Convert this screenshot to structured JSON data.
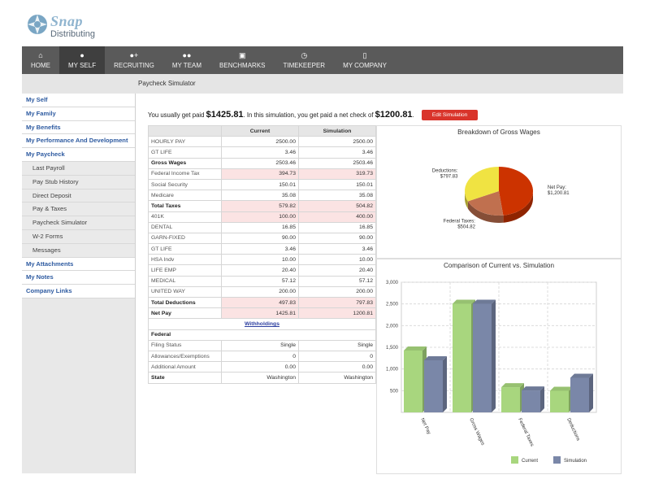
{
  "logo": {
    "brand": "Snap",
    "sub": "Distributing"
  },
  "nav": [
    {
      "icon": "home-icon",
      "glyph": "⌂",
      "label": "HOME"
    },
    {
      "icon": "user-icon",
      "glyph": "●",
      "label": "MY SELF",
      "active": true
    },
    {
      "icon": "add-user-icon",
      "glyph": "●+",
      "label": "RECRUITING"
    },
    {
      "icon": "team-icon",
      "glyph": "●●",
      "label": "MY TEAM"
    },
    {
      "icon": "benchmarks-icon",
      "glyph": "▣",
      "label": "BENCHMARKS"
    },
    {
      "icon": "clock-icon",
      "glyph": "◷",
      "label": "TIMEKEEPER"
    },
    {
      "icon": "building-icon",
      "glyph": "▯",
      "label": "MY COMPANY"
    }
  ],
  "page_title": "Paycheck Simulator",
  "sidebar": [
    {
      "label": "My Self",
      "type": "main"
    },
    {
      "label": "My Family",
      "type": "main"
    },
    {
      "label": "My Benefits",
      "type": "main"
    },
    {
      "label": "My Performance And Development",
      "type": "main"
    },
    {
      "label": "My Paycheck",
      "type": "main"
    },
    {
      "label": "Last Payroll",
      "type": "sub"
    },
    {
      "label": "Pay Stub History",
      "type": "sub"
    },
    {
      "label": "Direct Deposit",
      "type": "sub"
    },
    {
      "label": "Pay & Taxes",
      "type": "sub"
    },
    {
      "label": "Paycheck Simulator",
      "type": "sub"
    },
    {
      "label": "W-2 Forms",
      "type": "sub"
    },
    {
      "label": "Messages",
      "type": "sub"
    },
    {
      "label": "My Attachments",
      "type": "main"
    },
    {
      "label": "My Notes",
      "type": "main"
    },
    {
      "label": "Company Links",
      "type": "main"
    }
  ],
  "paymsg": {
    "pre": "You usually get paid ",
    "current": "$1425.81",
    "mid": ". In this simulation, you get paid a net check of ",
    "sim": "$1200.81",
    "post": ".",
    "edit_label": "Edit Simulation"
  },
  "table": {
    "headers": [
      "",
      "Current",
      "Simulation"
    ],
    "rows": [
      {
        "label": "HOURLY PAY",
        "current": "2500.00",
        "sim": "2500.00"
      },
      {
        "label": "GT LIFE",
        "current": "3.46",
        "sim": "3.46"
      },
      {
        "label": "Gross Wages",
        "current": "2503.46",
        "sim": "2503.46",
        "bold": true
      },
      {
        "label": "Federal Income Tax",
        "current": "394.73",
        "sim": "319.73",
        "pink": true
      },
      {
        "label": "Social Security",
        "current": "150.01",
        "sim": "150.01"
      },
      {
        "label": "Medicare",
        "current": "35.08",
        "sim": "35.08"
      },
      {
        "label": "Total Taxes",
        "current": "579.82",
        "sim": "504.82",
        "bold": true,
        "pink": true
      },
      {
        "label": "401K",
        "current": "100.00",
        "sim": "400.00",
        "pink": true
      },
      {
        "label": "DENTAL",
        "current": "16.85",
        "sim": "16.85"
      },
      {
        "label": "GARN-FIXED",
        "current": "90.00",
        "sim": "90.00"
      },
      {
        "label": "GT LIFE",
        "current": "3.46",
        "sim": "3.46"
      },
      {
        "label": "HSA Indv",
        "current": "10.00",
        "sim": "10.00"
      },
      {
        "label": "LIFE EMP",
        "current": "20.40",
        "sim": "20.40"
      },
      {
        "label": "MEDICAL",
        "current": "57.12",
        "sim": "57.12"
      },
      {
        "label": "UNITED WAY",
        "current": "200.00",
        "sim": "200.00"
      },
      {
        "label": "Total Deductions",
        "current": "497.83",
        "sim": "797.83",
        "bold": true,
        "pink": true
      },
      {
        "label": "Net Pay",
        "current": "1425.81",
        "sim": "1200.81",
        "bold": true,
        "pink": true
      }
    ],
    "withholdings_link": "Withholdings",
    "federal_label": "Federal",
    "fed_rows": [
      {
        "label": "Filing Status",
        "current": "Single",
        "sim": "Single"
      },
      {
        "label": "Allowances/Exemptions",
        "current": "0",
        "sim": "0"
      },
      {
        "label": "Additional Amount",
        "current": "0.00",
        "sim": "0.00"
      },
      {
        "label": "State",
        "current": "Washington",
        "sim": "Washington",
        "bold": true
      }
    ]
  },
  "chart_data": [
    {
      "type": "pie",
      "title": "Breakdown of Gross Wages",
      "slices": [
        {
          "name": "Net Pay",
          "label_value": "$1,200.81",
          "value": 1200.81,
          "color": "#cc3300"
        },
        {
          "name": "Federal Taxes",
          "label_value": "$504.82",
          "value": 504.82,
          "color": "#c0704f"
        },
        {
          "name": "Deductions",
          "label_value": "$797.83",
          "value": 797.83,
          "color": "#f0e342"
        }
      ]
    },
    {
      "type": "bar",
      "title": "Comparison of Current vs. Simulation",
      "categories": [
        "Net Pay",
        "Gross Wages",
        "Federal Taxes",
        "Deductions"
      ],
      "series": [
        {
          "name": "Current",
          "values": [
            1425.81,
            2503.46,
            579.82,
            497.83
          ],
          "color": "#a8d67e"
        },
        {
          "name": "Simulation",
          "values": [
            1200.81,
            2503.46,
            504.82,
            797.83
          ],
          "color": "#7a87a8"
        }
      ],
      "yticks": [
        "3,000",
        "2,500",
        "2,000",
        "1,500",
        "1,000",
        "500"
      ],
      "ylim": [
        0,
        3000
      ],
      "grid": true,
      "legend": "bottom-right"
    }
  ]
}
